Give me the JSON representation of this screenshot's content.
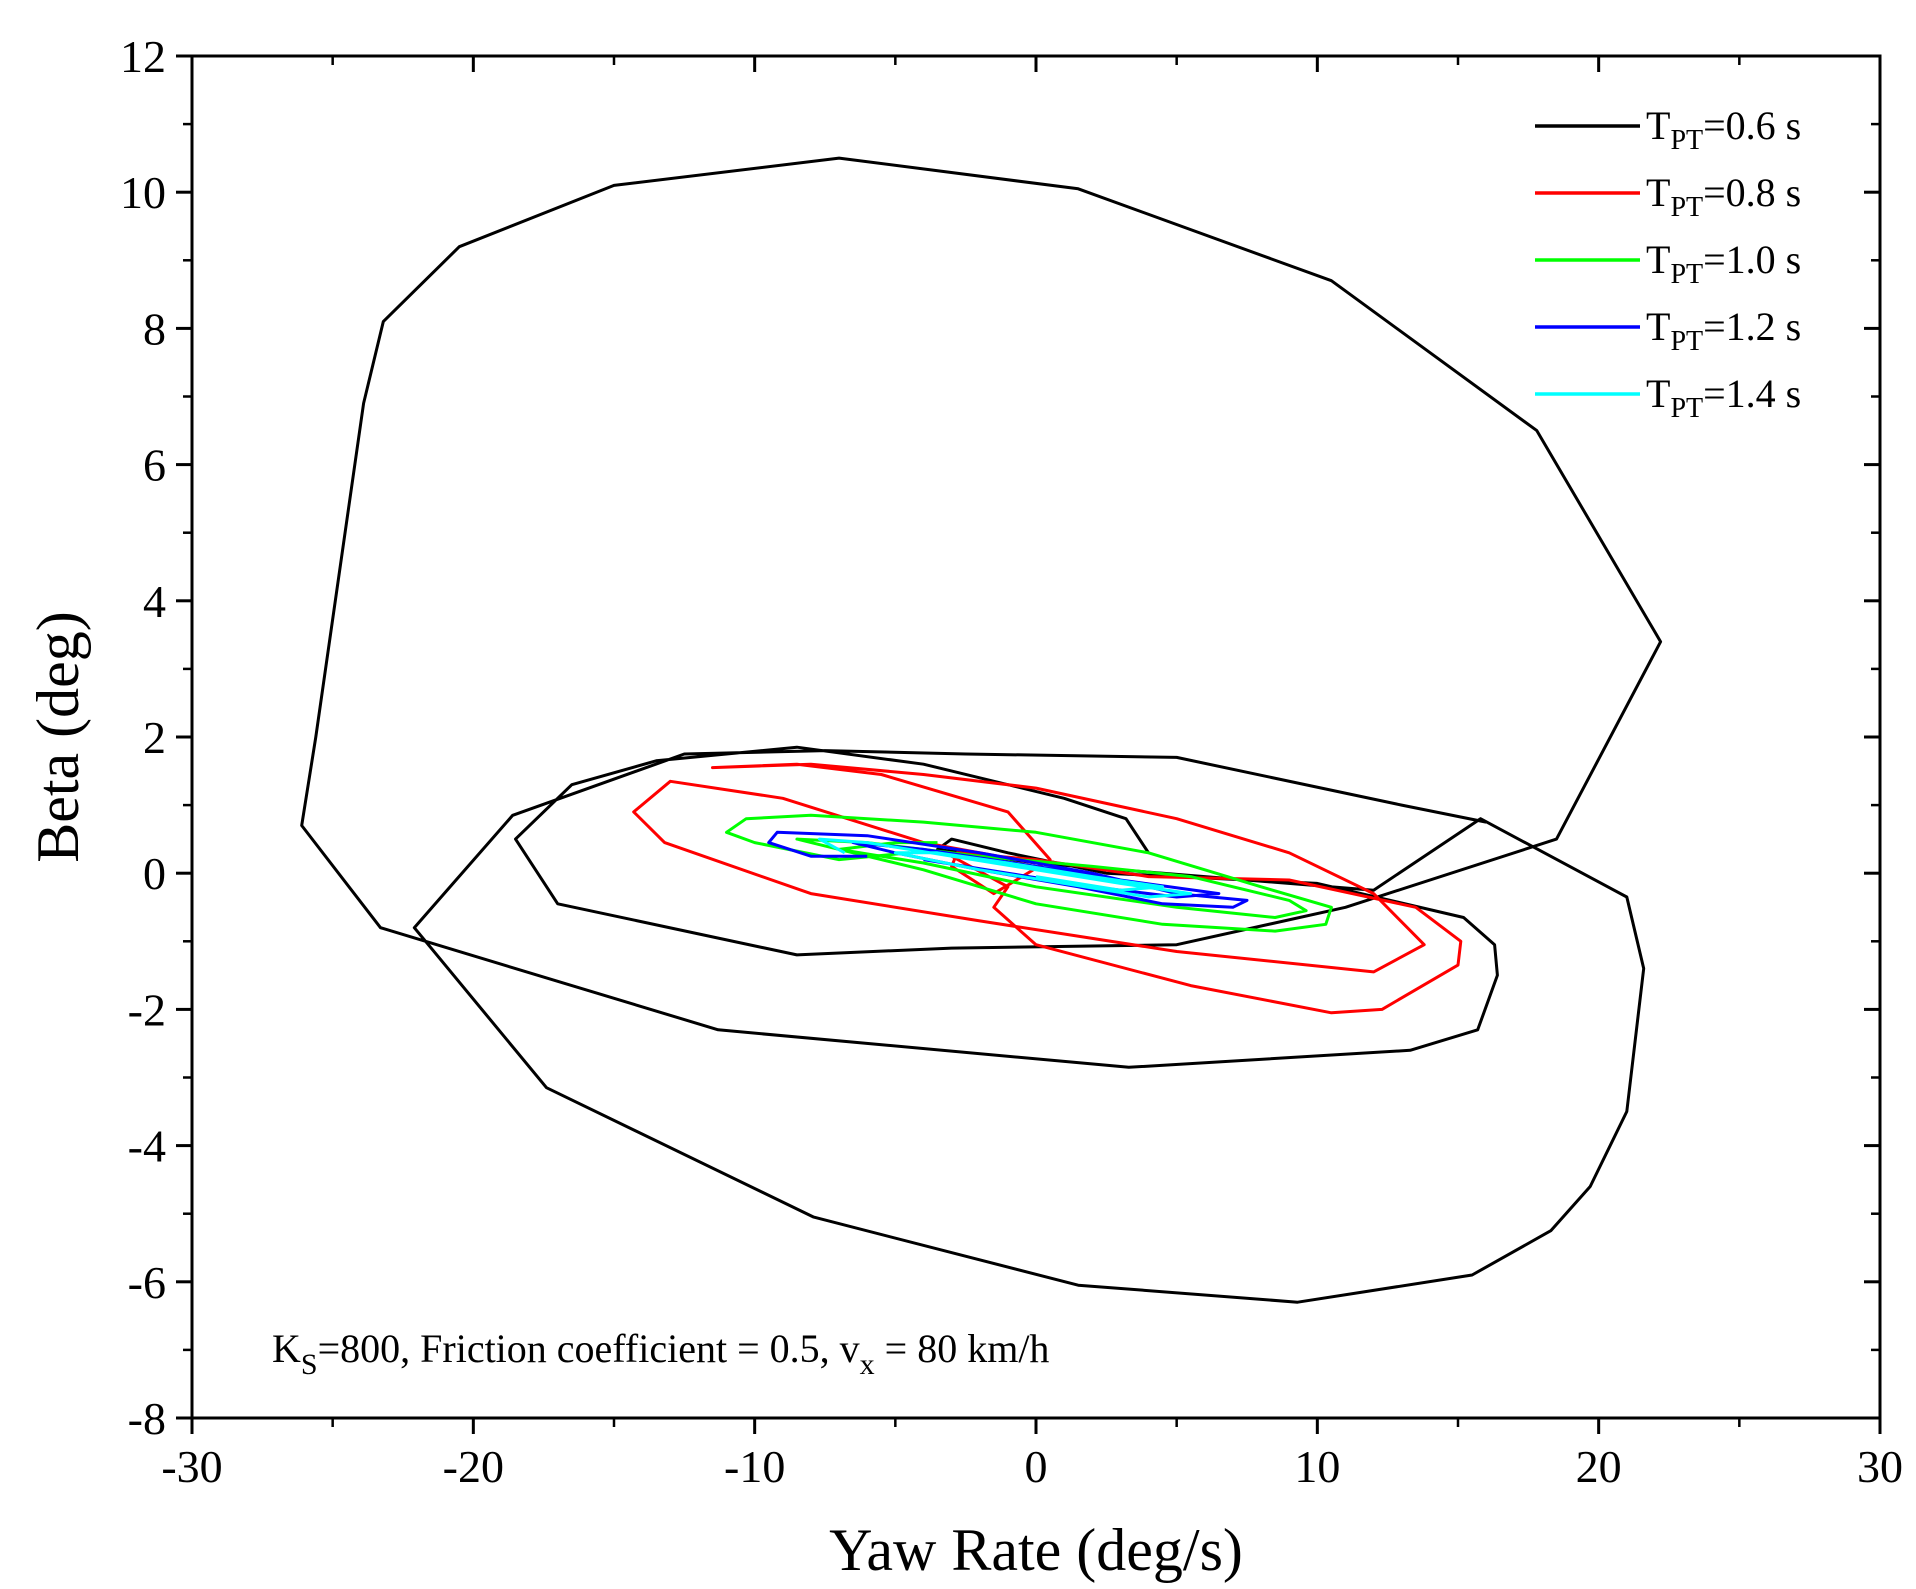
{
  "chart_data": {
    "type": "line",
    "title": "",
    "xlabel": "Yaw Rate (deg/s)",
    "ylabel": "Beta (deg)",
    "xlim": [
      -30,
      30
    ],
    "ylim": [
      -8,
      12
    ],
    "xticks": [
      -30,
      -20,
      -10,
      0,
      10,
      20,
      30
    ],
    "yticks": [
      -8,
      -6,
      -4,
      -2,
      0,
      2,
      4,
      6,
      8,
      10,
      12
    ],
    "grid": false,
    "legend_position": "top-right",
    "annotation": {
      "parts": [
        {
          "text": "K",
          "style": "normal"
        },
        {
          "text": "S",
          "style": "sub"
        },
        {
          "text": "=800, Friction coefficient = 0.5, v",
          "style": "normal"
        },
        {
          "text": "x",
          "style": "sub"
        },
        {
          "text": " = 80 km/h",
          "style": "normal"
        }
      ]
    },
    "series": [
      {
        "name": "T_PT=0.6 s",
        "label": {
          "main": "T",
          "sub": "PT",
          "rest": "=0.6 s"
        },
        "color": "#000000",
        "points": [
          [
            4,
            0.3
          ],
          [
            3.2,
            0.8
          ],
          [
            1,
            1.1
          ],
          [
            -4,
            1.6
          ],
          [
            -8.5,
            1.85
          ],
          [
            -13.5,
            1.65
          ],
          [
            -16.5,
            1.3
          ],
          [
            -18.5,
            0.5
          ],
          [
            -17,
            -0.45
          ],
          [
            -8.5,
            -1.2
          ],
          [
            -3,
            -1.1
          ],
          [
            5,
            -1.05
          ],
          [
            11,
            -0.5
          ],
          [
            18.5,
            0.5
          ],
          [
            22.2,
            3.4
          ],
          [
            17.8,
            6.5
          ],
          [
            10.5,
            8.7
          ],
          [
            1.5,
            10.05
          ],
          [
            -7,
            10.5
          ],
          [
            -15,
            10.1
          ],
          [
            -20.5,
            9.2
          ],
          [
            -23.2,
            8.1
          ],
          [
            -23.9,
            6.9
          ],
          [
            -25.6,
            2
          ],
          [
            -26.1,
            0.7
          ],
          [
            -23.3,
            -0.8
          ],
          [
            -11.3,
            -2.3
          ],
          [
            3.3,
            -2.85
          ],
          [
            13.3,
            -2.6
          ],
          [
            15.7,
            -2.3
          ],
          [
            16.4,
            -1.5
          ],
          [
            16.3,
            -1.05
          ],
          [
            15.2,
            -0.65
          ],
          [
            10,
            -0.15
          ],
          [
            2.5,
            0
          ],
          [
            -1,
            0.3
          ],
          [
            -3,
            0.5
          ],
          [
            -3.5,
            0.35
          ],
          [
            0,
            0.15
          ],
          [
            6,
            -0.05
          ],
          [
            12,
            -0.25
          ],
          [
            15.8,
            0.8
          ],
          [
            21,
            -0.35
          ],
          [
            21.6,
            -1.4
          ],
          [
            21,
            -3.5
          ],
          [
            19.7,
            -4.6
          ],
          [
            18.3,
            -5.25
          ],
          [
            15.5,
            -5.9
          ],
          [
            9.3,
            -6.3
          ],
          [
            1.5,
            -6.05
          ],
          [
            -7.9,
            -5.05
          ],
          [
            -17.4,
            -3.15
          ],
          [
            -22.1,
            -0.8
          ],
          [
            -18.6,
            0.85
          ],
          [
            -12.5,
            1.75
          ],
          [
            -7.5,
            1.8
          ],
          [
            -2.5,
            1.75
          ],
          [
            5,
            1.7
          ],
          [
            13,
            1.0
          ],
          [
            16,
            0.75
          ]
        ]
      },
      {
        "name": "T_PT=0.8 s",
        "label": {
          "main": "T",
          "sub": "PT",
          "rest": "=0.8 s"
        },
        "color": "#ff0000",
        "points": [
          [
            0,
            0.15
          ],
          [
            -4,
            0.45
          ],
          [
            -9,
            1.1
          ],
          [
            -13,
            1.35
          ],
          [
            -14.3,
            0.9
          ],
          [
            -13.2,
            0.45
          ],
          [
            -8,
            -0.3
          ],
          [
            -2,
            -0.7
          ],
          [
            5,
            -1.15
          ],
          [
            12,
            -1.45
          ],
          [
            13.8,
            -1.05
          ],
          [
            12,
            -0.3
          ],
          [
            9,
            0.3
          ],
          [
            5,
            0.8
          ],
          [
            0,
            1.25
          ],
          [
            -4,
            1.45
          ],
          [
            -8,
            1.6
          ],
          [
            -11.5,
            1.55
          ],
          [
            -8.5,
            1.6
          ],
          [
            -5.5,
            1.45
          ],
          [
            -1,
            0.9
          ],
          [
            0.5,
            0.2
          ],
          [
            -1.5,
            -0.3
          ],
          [
            -3,
            0.1
          ],
          [
            -2.8,
            0.3
          ],
          [
            0,
            0.2
          ],
          [
            4,
            -0.05
          ],
          [
            9,
            -0.1
          ],
          [
            13.5,
            -0.5
          ],
          [
            15.1,
            -1.0
          ],
          [
            15,
            -1.35
          ],
          [
            12.3,
            -2.0
          ],
          [
            10.5,
            -2.05
          ],
          [
            5.5,
            -1.65
          ],
          [
            0,
            -1.05
          ],
          [
            -1.5,
            -0.5
          ],
          [
            -1,
            -0.2
          ],
          [
            -3,
            0.25
          ]
        ]
      },
      {
        "name": "T_PT=1.0 s",
        "label": {
          "main": "T",
          "sub": "PT",
          "rest": "=1.0 s"
        },
        "color": "#00ff00",
        "points": [
          [
            -4.5,
            0.3
          ],
          [
            -7,
            0.2
          ],
          [
            -10,
            0.45
          ],
          [
            -11,
            0.6
          ],
          [
            -10.3,
            0.8
          ],
          [
            -8,
            0.85
          ],
          [
            -4,
            0.75
          ],
          [
            0,
            0.6
          ],
          [
            4,
            0.3
          ],
          [
            8,
            -0.2
          ],
          [
            10.5,
            -0.5
          ],
          [
            10.3,
            -0.75
          ],
          [
            8.5,
            -0.85
          ],
          [
            4.5,
            -0.75
          ],
          [
            0,
            -0.45
          ],
          [
            -4,
            0.05
          ],
          [
            -7,
            0.35
          ],
          [
            -8.5,
            0.5
          ],
          [
            -6,
            0.45
          ],
          [
            -2,
            0.25
          ],
          [
            2,
            0.1
          ],
          [
            5.5,
            -0.05
          ],
          [
            9,
            -0.4
          ],
          [
            9.6,
            -0.55
          ],
          [
            8.5,
            -0.65
          ],
          [
            5,
            -0.5
          ],
          [
            0,
            -0.2
          ],
          [
            -4,
            0.15
          ],
          [
            -7,
            0.35
          ],
          [
            -5,
            0.45
          ],
          [
            -3.5,
            0.45
          ]
        ]
      },
      {
        "name": "T_PT=1.2 s",
        "label": {
          "main": "T",
          "sub": "PT",
          "rest": "=1.2 s"
        },
        "color": "#0000ff",
        "points": [
          [
            -6,
            0.25
          ],
          [
            -8,
            0.25
          ],
          [
            -9.5,
            0.45
          ],
          [
            -9.2,
            0.6
          ],
          [
            -6,
            0.55
          ],
          [
            -2,
            0.3
          ],
          [
            2,
            0.0
          ],
          [
            5,
            -0.3
          ],
          [
            7.5,
            -0.4
          ],
          [
            7,
            -0.5
          ],
          [
            4.5,
            -0.45
          ],
          [
            1.5,
            -0.2
          ],
          [
            -2,
            0.05
          ],
          [
            -5,
            0.3
          ],
          [
            -6.5,
            0.45
          ],
          [
            -4,
            0.35
          ],
          [
            0,
            0.1
          ],
          [
            3,
            -0.1
          ],
          [
            6.5,
            -0.3
          ],
          [
            5,
            -0.35
          ],
          [
            2,
            -0.2
          ],
          [
            -1,
            0.0
          ],
          [
            -4,
            0.2
          ]
        ]
      },
      {
        "name": "T_PT=1.4 s",
        "label": {
          "main": "T",
          "sub": "PT",
          "rest": "=1.4 s"
        },
        "color": "#00ffff",
        "points": [
          [
            -6.8,
            0.3
          ],
          [
            -7.7,
            0.5
          ],
          [
            -6,
            0.45
          ],
          [
            -3,
            0.25
          ],
          [
            0,
            0.05
          ],
          [
            3,
            -0.15
          ],
          [
            5.5,
            -0.3
          ],
          [
            4,
            -0.35
          ],
          [
            1,
            -0.15
          ],
          [
            -2,
            0.05
          ],
          [
            -5,
            0.3
          ],
          [
            -3.5,
            0.3
          ],
          [
            -1,
            0.15
          ],
          [
            2,
            -0.05
          ],
          [
            4.5,
            -0.2
          ],
          [
            3,
            -0.25
          ],
          [
            0,
            -0.05
          ]
        ]
      }
    ]
  }
}
